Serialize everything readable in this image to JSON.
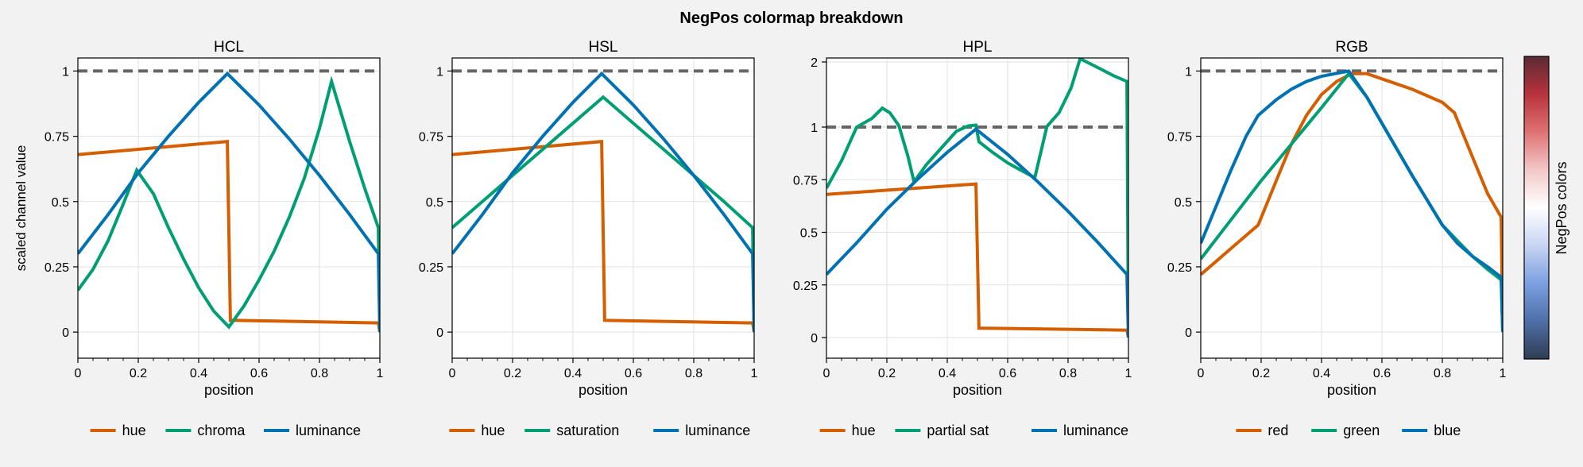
{
  "figure": {
    "title": "NegPos colormap breakdown",
    "ylabel": "scaled channel value",
    "xlabel": "position",
    "colorbar_label": "NegPos colors",
    "colors": {
      "orange": "#d55e00",
      "green": "#009e73",
      "blue": "#0072b2",
      "reference_line": "#666666",
      "background": "#f2f2f2",
      "axes_background": "#ffffff",
      "grid": "#e2e2e2"
    },
    "colorbar_colors": [
      "#2f3d52",
      "#4e6fa8",
      "#7b9fe0",
      "#c8d4f3",
      "#ffffff",
      "#f3c8c8",
      "#e07272",
      "#b8333c",
      "#5a2a33"
    ]
  },
  "chart_data": [
    {
      "type": "line",
      "title": "HCL",
      "xlabel": "position",
      "ylabel": "scaled channel value",
      "xlim": [
        0,
        1
      ],
      "ylim": [
        -0.1,
        1.05
      ],
      "xticks": [
        0,
        0.2,
        0.4,
        0.6,
        0.8,
        1
      ],
      "xtick_labels": [
        "0",
        "0.2",
        "0.4",
        "0.6",
        "0.8",
        "1"
      ],
      "yticks": [
        0,
        0.25,
        0.5,
        0.75,
        1
      ],
      "ytick_labels": [
        "0",
        "0.25",
        "0.5",
        "0.75",
        "1"
      ],
      "reference_line": 1,
      "grid": true,
      "legend": "bottom",
      "series": [
        {
          "name": "hue",
          "color": "#d55e00",
          "points": [
            [
              0,
              0.68
            ],
            [
              0.495,
              0.73
            ],
            [
              0.505,
              0.045
            ],
            [
              0.995,
              0.035
            ],
            [
              1.0,
              0.0
            ]
          ]
        },
        {
          "name": "chroma",
          "color": "#009e73",
          "points": [
            [
              0,
              0.16
            ],
            [
              0.05,
              0.24
            ],
            [
              0.1,
              0.35
            ],
            [
              0.15,
              0.49
            ],
            [
              0.195,
              0.62
            ],
            [
              0.25,
              0.53
            ],
            [
              0.3,
              0.4
            ],
            [
              0.35,
              0.28
            ],
            [
              0.4,
              0.17
            ],
            [
              0.45,
              0.08
            ],
            [
              0.5,
              0.02
            ],
            [
              0.55,
              0.1
            ],
            [
              0.6,
              0.2
            ],
            [
              0.65,
              0.31
            ],
            [
              0.7,
              0.44
            ],
            [
              0.75,
              0.59
            ],
            [
              0.8,
              0.78
            ],
            [
              0.84,
              0.96
            ],
            [
              0.9,
              0.73
            ],
            [
              0.95,
              0.55
            ],
            [
              0.995,
              0.4
            ],
            [
              1.0,
              0.0
            ]
          ]
        },
        {
          "name": "luminance",
          "color": "#0072b2",
          "points": [
            [
              0,
              0.3
            ],
            [
              0.1,
              0.45
            ],
            [
              0.2,
              0.61
            ],
            [
              0.3,
              0.75
            ],
            [
              0.4,
              0.88
            ],
            [
              0.495,
              0.99
            ],
            [
              0.6,
              0.87
            ],
            [
              0.7,
              0.74
            ],
            [
              0.8,
              0.6
            ],
            [
              0.9,
              0.45
            ],
            [
              0.995,
              0.3
            ],
            [
              1.0,
              0.0
            ]
          ]
        }
      ]
    },
    {
      "type": "line",
      "title": "HSL",
      "xlabel": "position",
      "xlim": [
        0,
        1
      ],
      "ylim": [
        -0.1,
        1.05
      ],
      "xticks": [
        0,
        0.2,
        0.4,
        0.6,
        0.8,
        1
      ],
      "xtick_labels": [
        "0",
        "0.2",
        "0.4",
        "0.6",
        "0.8",
        "1"
      ],
      "yticks": [
        0,
        0.25,
        0.5,
        0.75,
        1
      ],
      "ytick_labels": [
        "0",
        "0.25",
        "0.5",
        "0.75",
        "1"
      ],
      "reference_line": 1,
      "grid": true,
      "legend": "bottom",
      "series": [
        {
          "name": "hue",
          "color": "#d55e00",
          "points": [
            [
              0,
              0.68
            ],
            [
              0.495,
              0.73
            ],
            [
              0.505,
              0.045
            ],
            [
              0.995,
              0.035
            ],
            [
              1.0,
              0.0
            ]
          ]
        },
        {
          "name": "saturation",
          "color": "#009e73",
          "points": [
            [
              0,
              0.4
            ],
            [
              0.1,
              0.5
            ],
            [
              0.2,
              0.6
            ],
            [
              0.3,
              0.7
            ],
            [
              0.4,
              0.8
            ],
            [
              0.5,
              0.9
            ],
            [
              0.6,
              0.8
            ],
            [
              0.7,
              0.7
            ],
            [
              0.8,
              0.6
            ],
            [
              0.9,
              0.5
            ],
            [
              0.995,
              0.4
            ],
            [
              1.0,
              0.0
            ]
          ]
        },
        {
          "name": "luminance",
          "color": "#0072b2",
          "points": [
            [
              0,
              0.3
            ],
            [
              0.1,
              0.45
            ],
            [
              0.2,
              0.61
            ],
            [
              0.3,
              0.75
            ],
            [
              0.4,
              0.88
            ],
            [
              0.495,
              0.99
            ],
            [
              0.6,
              0.87
            ],
            [
              0.7,
              0.74
            ],
            [
              0.8,
              0.6
            ],
            [
              0.9,
              0.45
            ],
            [
              0.995,
              0.3
            ],
            [
              1.0,
              0.0
            ]
          ]
        }
      ]
    },
    {
      "type": "line",
      "title": "HPL",
      "xlabel": "position",
      "xlim": [
        0,
        1
      ],
      "ylim": [
        -0.1,
        2.25
      ],
      "xticks": [
        0,
        0.2,
        0.4,
        0.6,
        0.8,
        1
      ],
      "xtick_labels": [
        "0",
        "0.2",
        "0.4",
        "0.6",
        "0.8",
        "1"
      ],
      "yticks": [
        0,
        0.25,
        0.5,
        0.75,
        1,
        2
      ],
      "ytick_labels": [
        "0",
        "0.25",
        "0.5",
        "0.75",
        "1",
        "2"
      ],
      "y_scale": "piecewise: linear 0–1 (ticks every 0.25), compressed 1–2",
      "reference_line": 1,
      "grid": true,
      "legend": "bottom",
      "series": [
        {
          "name": "hue",
          "color": "#d55e00",
          "points": [
            [
              0,
              0.68
            ],
            [
              0.495,
              0.73
            ],
            [
              0.505,
              0.045
            ],
            [
              0.995,
              0.035
            ],
            [
              1.0,
              0.0
            ]
          ]
        },
        {
          "name": "partial sat",
          "color": "#009e73",
          "points": [
            [
              0,
              0.71
            ],
            [
              0.05,
              0.84
            ],
            [
              0.1,
              1.0
            ],
            [
              0.15,
              1.13
            ],
            [
              0.185,
              1.29
            ],
            [
              0.21,
              1.22
            ],
            [
              0.24,
              1.02
            ],
            [
              0.27,
              0.86
            ],
            [
              0.29,
              0.74
            ],
            [
              0.33,
              0.82
            ],
            [
              0.38,
              0.9
            ],
            [
              0.43,
              0.98
            ],
            [
              0.47,
              1.02
            ],
            [
              0.495,
              1.03
            ],
            [
              0.505,
              0.93
            ],
            [
              0.55,
              0.88
            ],
            [
              0.6,
              0.83
            ],
            [
              0.65,
              0.79
            ],
            [
              0.69,
              0.76
            ],
            [
              0.73,
              1.01
            ],
            [
              0.77,
              1.22
            ],
            [
              0.81,
              1.6
            ],
            [
              0.84,
              2.05
            ],
            [
              0.9,
              1.91
            ],
            [
              0.95,
              1.79
            ],
            [
              0.995,
              1.7
            ],
            [
              1.0,
              0.0
            ]
          ]
        },
        {
          "name": "luminance",
          "color": "#0072b2",
          "points": [
            [
              0,
              0.3
            ],
            [
              0.1,
              0.45
            ],
            [
              0.2,
              0.61
            ],
            [
              0.3,
              0.75
            ],
            [
              0.4,
              0.88
            ],
            [
              0.495,
              0.99
            ],
            [
              0.6,
              0.87
            ],
            [
              0.7,
              0.74
            ],
            [
              0.8,
              0.6
            ],
            [
              0.9,
              0.45
            ],
            [
              0.995,
              0.3
            ],
            [
              1.0,
              0.0
            ]
          ]
        }
      ]
    },
    {
      "type": "line",
      "title": "RGB",
      "xlabel": "position",
      "xlim": [
        0,
        1
      ],
      "ylim": [
        -0.1,
        1.05
      ],
      "xticks": [
        0,
        0.2,
        0.4,
        0.6,
        0.8,
        1
      ],
      "xtick_labels": [
        "0",
        "0.2",
        "0.4",
        "0.6",
        "0.8",
        "1"
      ],
      "yticks": [
        0,
        0.25,
        0.5,
        0.75,
        1
      ],
      "ytick_labels": [
        "0",
        "0.25",
        "0.5",
        "0.75",
        "1"
      ],
      "reference_line": 1,
      "grid": true,
      "legend": "bottom",
      "series": [
        {
          "name": "red",
          "color": "#d55e00",
          "points": [
            [
              0,
              0.22
            ],
            [
              0.1,
              0.32
            ],
            [
              0.19,
              0.41
            ],
            [
              0.25,
              0.58
            ],
            [
              0.3,
              0.72
            ],
            [
              0.35,
              0.83
            ],
            [
              0.4,
              0.91
            ],
            [
              0.45,
              0.96
            ],
            [
              0.5,
              0.99
            ],
            [
              0.55,
              0.99
            ],
            [
              0.6,
              0.97
            ],
            [
              0.7,
              0.93
            ],
            [
              0.8,
              0.88
            ],
            [
              0.84,
              0.84
            ],
            [
              0.9,
              0.67
            ],
            [
              0.95,
              0.53
            ],
            [
              0.995,
              0.44
            ],
            [
              1.0,
              0.0
            ]
          ]
        },
        {
          "name": "green",
          "color": "#009e73",
          "points": [
            [
              0,
              0.28
            ],
            [
              0.1,
              0.43
            ],
            [
              0.2,
              0.58
            ],
            [
              0.3,
              0.72
            ],
            [
              0.4,
              0.86
            ],
            [
              0.49,
              0.99
            ],
            [
              0.55,
              0.9
            ],
            [
              0.6,
              0.8
            ],
            [
              0.7,
              0.6
            ],
            [
              0.8,
              0.41
            ],
            [
              0.85,
              0.35
            ],
            [
              0.9,
              0.29
            ],
            [
              0.95,
              0.24
            ],
            [
              0.995,
              0.2
            ],
            [
              1.0,
              0.0
            ]
          ]
        },
        {
          "name": "blue",
          "color": "#0072b2",
          "points": [
            [
              0,
              0.34
            ],
            [
              0.05,
              0.48
            ],
            [
              0.1,
              0.62
            ],
            [
              0.15,
              0.75
            ],
            [
              0.19,
              0.83
            ],
            [
              0.25,
              0.89
            ],
            [
              0.3,
              0.93
            ],
            [
              0.35,
              0.96
            ],
            [
              0.4,
              0.98
            ],
            [
              0.49,
              1.0
            ],
            [
              0.55,
              0.9
            ],
            [
              0.6,
              0.8
            ],
            [
              0.7,
              0.6
            ],
            [
              0.8,
              0.41
            ],
            [
              0.85,
              0.34
            ],
            [
              0.9,
              0.29
            ],
            [
              0.95,
              0.25
            ],
            [
              0.995,
              0.21
            ],
            [
              1.0,
              0.0
            ]
          ]
        }
      ]
    }
  ]
}
